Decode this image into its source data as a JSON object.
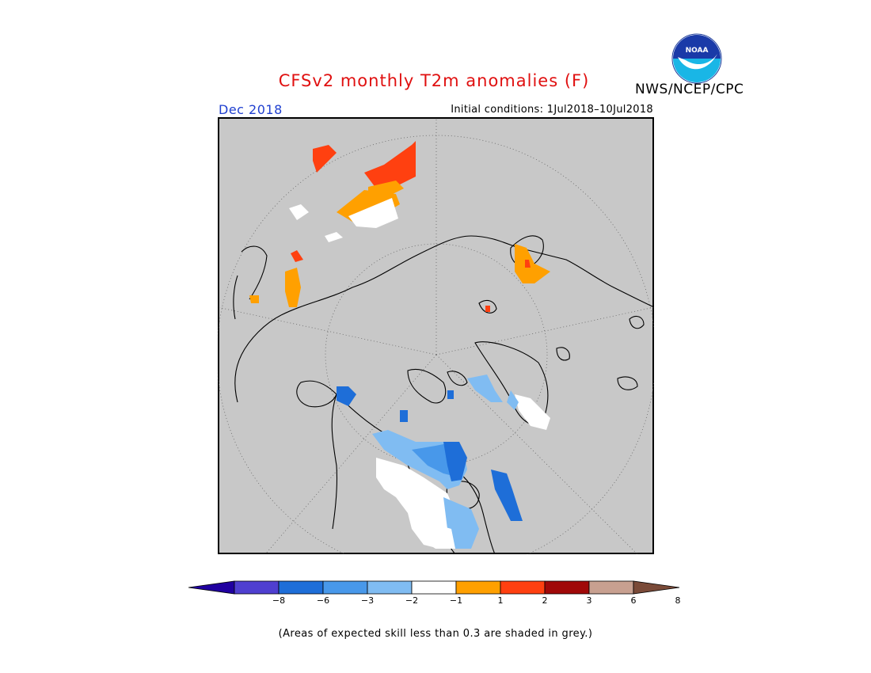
{
  "header": {
    "title": "CFSv2 monthly T2m anomalies (F)",
    "agency": "NWS/NCEP/CPC",
    "valid_month": "Dec 2018",
    "initial_conditions": "Initial conditions: 1Jul2018–10Jul2018",
    "logo_text": "NOAA"
  },
  "legend": {
    "ticks": [
      "−8",
      "−6",
      "−3",
      "−2",
      "−1",
      "1",
      "2",
      "3",
      "6",
      "8"
    ],
    "bins": [
      {
        "color": "#2000a0"
      },
      {
        "color": "#4f3fd0"
      },
      {
        "color": "#1e6ed8"
      },
      {
        "color": "#4898ea"
      },
      {
        "color": "#80bcf2"
      },
      {
        "color": "#ffffff"
      },
      {
        "color": "#ffa000"
      },
      {
        "color": "#ff4010"
      },
      {
        "color": "#a00808"
      },
      {
        "color": "#c8a090"
      },
      {
        "color": "#7a4a38"
      }
    ]
  },
  "note": "(Areas of expected skill less than 0.3 are shaded in grey.)",
  "map": {
    "background_color": "#c8c8c8",
    "projection": "north-polar-stereographic"
  }
}
